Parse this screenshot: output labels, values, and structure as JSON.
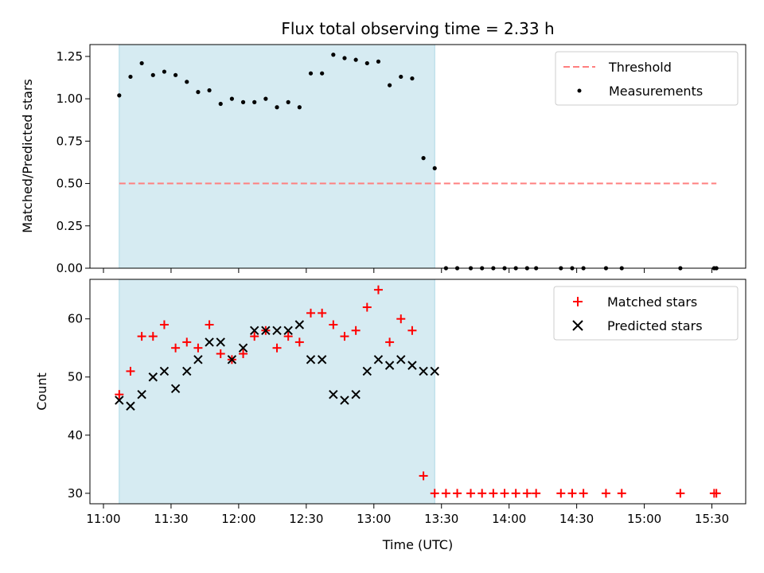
{
  "chart_data": [
    {
      "type": "scatter",
      "title": "Flux total observing time = 2.33 h",
      "xlabel": "",
      "ylabel": "Matched/Predicted stars",
      "ylim": [
        0,
        1.32
      ],
      "yticks": [
        "0.00",
        "0.25",
        "0.50",
        "0.75",
        "1.00",
        "1.25"
      ],
      "ytick_values": [
        0,
        0.25,
        0.5,
        0.75,
        1.0,
        1.25
      ],
      "shaded_region": {
        "start": "11:07",
        "end": "13:27",
        "color": "#add8e6"
      },
      "legend": {
        "placement": "top-right",
        "entries": [
          "Threshold",
          "Measurements"
        ]
      },
      "threshold": {
        "name": "Threshold",
        "value": 0.5,
        "x_start": "11:07",
        "x_end": "15:32",
        "color": "#ff7f7f"
      },
      "series": [
        {
          "name": "Measurements",
          "color": "#000000",
          "x": [
            "11:07",
            "11:12",
            "11:17",
            "11:22",
            "11:27",
            "11:32",
            "11:37",
            "11:42",
            "11:47",
            "11:52",
            "11:57",
            "12:02",
            "12:07",
            "12:12",
            "12:17",
            "12:22",
            "12:27",
            "12:32",
            "12:37",
            "12:42",
            "12:47",
            "12:52",
            "12:57",
            "13:02",
            "13:07",
            "13:12",
            "13:17",
            "13:22",
            "13:27",
            "13:32",
            "13:37",
            "13:43",
            "13:48",
            "13:53",
            "13:58",
            "14:03",
            "14:08",
            "14:12",
            "14:23",
            "14:28",
            "14:33",
            "14:43",
            "14:50",
            "15:16",
            "15:31",
            "15:32"
          ],
          "values": [
            1.02,
            1.13,
            1.21,
            1.14,
            1.16,
            1.14,
            1.1,
            1.04,
            1.05,
            0.97,
            1.0,
            0.98,
            0.98,
            1.0,
            0.95,
            0.98,
            0.95,
            1.15,
            1.15,
            1.26,
            1.24,
            1.23,
            1.21,
            1.22,
            1.08,
            1.13,
            1.12,
            0.65,
            0.59,
            0,
            0,
            0,
            0,
            0,
            0,
            0,
            0,
            0,
            0,
            0,
            0,
            0,
            0,
            0,
            0,
            0
          ]
        }
      ]
    },
    {
      "type": "scatter",
      "title": "",
      "xlabel": "Time (UTC)",
      "ylabel": "Count",
      "ylim": [
        28.2,
        66.8
      ],
      "yticks": [
        "30",
        "40",
        "50",
        "60"
      ],
      "ytick_values": [
        30,
        40,
        50,
        60
      ],
      "xticks": [
        "11:00",
        "11:30",
        "12:00",
        "12:30",
        "13:00",
        "13:30",
        "14:00",
        "14:30",
        "15:00",
        "15:30"
      ],
      "xlim": [
        "10:54",
        "15:45"
      ],
      "shaded_region": {
        "start": "11:07",
        "end": "13:27",
        "color": "#add8e6"
      },
      "legend": {
        "placement": "top-right",
        "entries": [
          "Matched stars",
          "Predicted stars"
        ]
      },
      "series": [
        {
          "name": "Matched stars",
          "marker": "+",
          "color": "#ff0000",
          "x": [
            "11:07",
            "11:12",
            "11:17",
            "11:22",
            "11:27",
            "11:32",
            "11:37",
            "11:42",
            "11:47",
            "11:52",
            "11:57",
            "12:02",
            "12:07",
            "12:12",
            "12:17",
            "12:22",
            "12:27",
            "12:32",
            "12:37",
            "12:42",
            "12:47",
            "12:52",
            "12:57",
            "13:02",
            "13:07",
            "13:12",
            "13:17",
            "13:22",
            "13:27",
            "13:32",
            "13:37",
            "13:43",
            "13:48",
            "13:53",
            "13:58",
            "14:03",
            "14:08",
            "14:12",
            "14:23",
            "14:28",
            "14:33",
            "14:43",
            "14:50",
            "15:16",
            "15:31",
            "15:32"
          ],
          "values": [
            47,
            51,
            57,
            57,
            59,
            55,
            56,
            55,
            59,
            54,
            53,
            54,
            57,
            58,
            55,
            57,
            56,
            61,
            61,
            59,
            57,
            58,
            62,
            65,
            56,
            60,
            58,
            33,
            30,
            30,
            30,
            30,
            30,
            30,
            30,
            30,
            30,
            30,
            30,
            30,
            30,
            30,
            30,
            30,
            30,
            30
          ]
        },
        {
          "name": "Predicted stars",
          "marker": "x",
          "color": "#000000",
          "x": [
            "11:07",
            "11:12",
            "11:17",
            "11:22",
            "11:27",
            "11:32",
            "11:37",
            "11:42",
            "11:47",
            "11:52",
            "11:57",
            "12:02",
            "12:07",
            "12:12",
            "12:17",
            "12:22",
            "12:27",
            "12:32",
            "12:37",
            "12:42",
            "12:47",
            "12:52",
            "12:57",
            "13:02",
            "13:07",
            "13:12",
            "13:17",
            "13:22",
            "13:27"
          ],
          "values": [
            46,
            45,
            47,
            50,
            51,
            48,
            51,
            53,
            56,
            56,
            53,
            55,
            58,
            58,
            58,
            58,
            59,
            53,
            53,
            47,
            46,
            47,
            51,
            53,
            52,
            53,
            52,
            51,
            51
          ]
        }
      ]
    }
  ]
}
